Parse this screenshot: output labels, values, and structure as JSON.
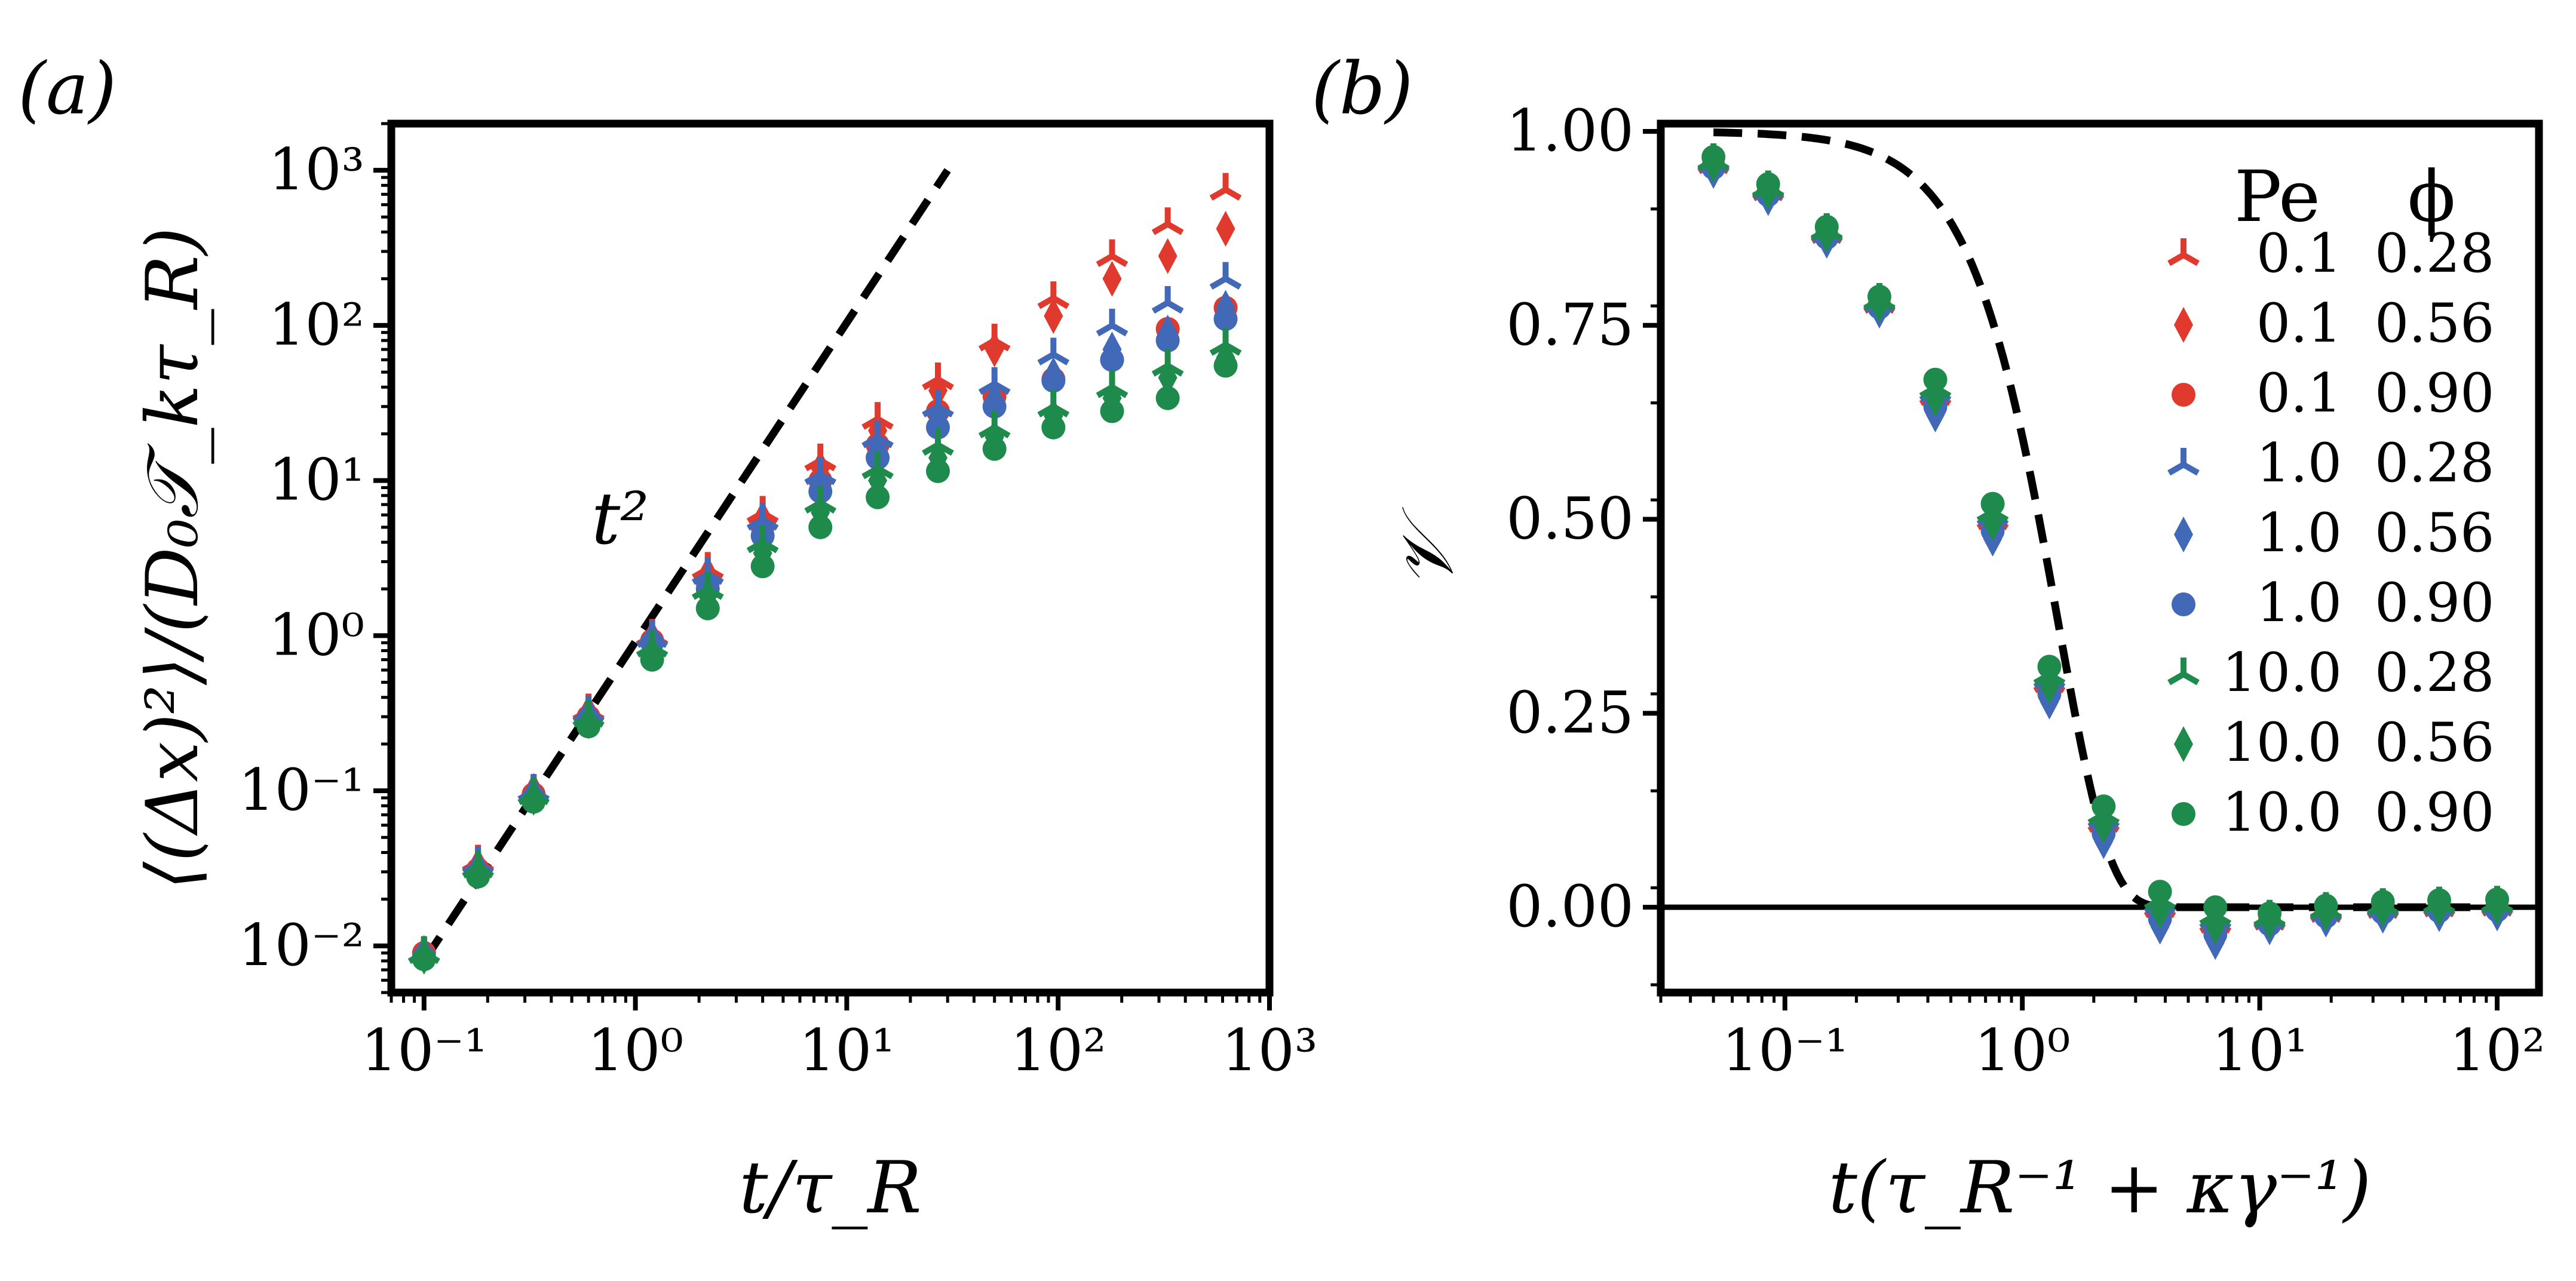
{
  "colors": {
    "red": "#E03A2E",
    "blue": "#4169B8",
    "green": "#1E8A4C",
    "axis": "#000000"
  },
  "chart_data": [
    {
      "panel_label": "(a)",
      "type": "scatter",
      "xscale": "log",
      "yscale": "log",
      "xlim": [
        0.07,
        1000
      ],
      "ylim": [
        0.005,
        2000
      ],
      "xticks": [
        {
          "v": 0.1,
          "label": "10⁻¹"
        },
        {
          "v": 1,
          "label": "10⁰"
        },
        {
          "v": 10,
          "label": "10¹"
        },
        {
          "v": 100,
          "label": "10²"
        },
        {
          "v": 1000,
          "label": "10³"
        }
      ],
      "yticks": [
        {
          "v": 0.01,
          "label": "10⁻²"
        },
        {
          "v": 0.1,
          "label": "10⁻¹"
        },
        {
          "v": 1,
          "label": "10⁰"
        },
        {
          "v": 10,
          "label": "10¹"
        },
        {
          "v": 100,
          "label": "10²"
        },
        {
          "v": 1000,
          "label": "10³"
        }
      ],
      "xlabel": "t/τ_R",
      "ylabel": "⟨(Δx)²⟩/(D₀𝒯_kτ_R)",
      "annotation": {
        "text": "t²",
        "x": 0.8,
        "y": 5
      },
      "reference_line": {
        "label": "t²",
        "x": [
          0.1,
          30
        ],
        "y": [
          0.008,
          1000
        ]
      },
      "x": [
        0.1,
        0.18,
        0.33,
        0.6,
        1.2,
        2.2,
        4,
        7.5,
        14,
        27,
        50,
        95,
        180,
        330,
        620
      ],
      "series": [
        {
          "name": "Pe 0.1, φ 0.28",
          "color": "red",
          "marker": "tri_down",
          "y": [
            0.009,
            0.035,
            0.1,
            0.33,
            1.0,
            2.7,
            6.2,
            13.5,
            25,
            45,
            80,
            150,
            280,
            450,
            750
          ]
        },
        {
          "name": "Pe 0.1, φ 0.56",
          "color": "red",
          "marker": "diamond",
          "y": [
            0.009,
            0.033,
            0.1,
            0.32,
            0.97,
            2.5,
            5.7,
            12,
            21,
            38,
            70,
            115,
            200,
            280,
            420
          ]
        },
        {
          "name": "Pe 0.1, φ 0.90",
          "color": "red",
          "marker": "circle",
          "y": [
            0.009,
            0.031,
            0.095,
            0.3,
            0.93,
            2.2,
            5.0,
            10.0,
            17,
            28,
            35,
            45,
            60,
            95,
            130
          ]
        },
        {
          "name": "Pe 1.0, φ 0.28",
          "color": "blue",
          "marker": "tri_down",
          "y": [
            0.009,
            0.034,
            0.1,
            0.32,
            0.98,
            2.5,
            5.6,
            11,
            19,
            30,
            42,
            65,
            100,
            140,
            200
          ]
        },
        {
          "name": "Pe 1.0, φ 0.56",
          "color": "blue",
          "marker": "diamond",
          "y": [
            0.009,
            0.032,
            0.097,
            0.31,
            0.95,
            2.2,
            4.9,
            9.5,
            16,
            26,
            33,
            48,
            70,
            90,
            130
          ]
        },
        {
          "name": "Pe 1.0, φ 0.90",
          "color": "blue",
          "marker": "circle",
          "y": [
            0.0085,
            0.029,
            0.09,
            0.29,
            0.9,
            2.0,
            4.4,
            8.5,
            14,
            22,
            30,
            44,
            60,
            80,
            110
          ]
        },
        {
          "name": "Pe 10.0, φ 0.28",
          "color": "green",
          "marker": "tri_down",
          "y": [
            0.009,
            0.032,
            0.095,
            0.3,
            0.85,
            2.0,
            4.0,
            7.2,
            12,
            17,
            22,
            30,
            40,
            55,
            75
          ]
        },
        {
          "name": "Pe 10.0, φ 0.56",
          "color": "green",
          "marker": "diamond",
          "y": [
            0.0085,
            0.03,
            0.09,
            0.28,
            0.78,
            1.8,
            3.4,
            6.2,
            10,
            14,
            19,
            26,
            34,
            46,
            62
          ]
        },
        {
          "name": "Pe 10.0, φ 0.90",
          "color": "green",
          "marker": "circle",
          "y": [
            0.0082,
            0.028,
            0.085,
            0.26,
            0.7,
            1.5,
            2.8,
            5.0,
            7.8,
            11.5,
            16,
            22,
            28,
            34,
            55
          ]
        }
      ]
    },
    {
      "panel_label": "(b)",
      "type": "scatter",
      "xscale": "log",
      "yscale": "linear",
      "xlim": [
        0.03,
        150
      ],
      "ylim": [
        -0.11,
        1.01
      ],
      "xticks": [
        {
          "v": 0.1,
          "label": "10⁻¹"
        },
        {
          "v": 1,
          "label": "10⁰"
        },
        {
          "v": 10,
          "label": "10¹"
        },
        {
          "v": 100,
          "label": "10²"
        }
      ],
      "yticks": [
        {
          "v": 0,
          "label": "0.00"
        },
        {
          "v": 0.25,
          "label": "0.25"
        },
        {
          "v": 0.5,
          "label": "0.50"
        },
        {
          "v": 0.75,
          "label": "0.75"
        },
        {
          "v": 1.0,
          "label": "1.00"
        }
      ],
      "xlabel": "t(τ_R⁻¹ + κγ⁻¹)",
      "ylabel": "𝒱",
      "zero_line": true,
      "reference_curve": "exp(-x²/2)",
      "x": [
        0.05,
        0.085,
        0.15,
        0.25,
        0.43,
        0.75,
        1.3,
        2.2,
        3.8,
        6.5,
        11,
        19,
        33,
        57,
        100
      ],
      "y_typical": [
        0.955,
        0.92,
        0.865,
        0.775,
        0.65,
        0.49,
        0.28,
        0.1,
        -0.01,
        -0.03,
        -0.02,
        -0.01,
        -0.005,
        -0.003,
        -0.002
      ],
      "legend": {
        "header": [
          "Pe",
          "ϕ"
        ],
        "entries": [
          {
            "pe": "0.1",
            "phi": "0.28",
            "color": "red",
            "marker": "tri_down"
          },
          {
            "pe": "0.1",
            "phi": "0.56",
            "color": "red",
            "marker": "diamond"
          },
          {
            "pe": "0.1",
            "phi": "0.90",
            "color": "red",
            "marker": "circle"
          },
          {
            "pe": "1.0",
            "phi": "0.28",
            "color": "blue",
            "marker": "tri_down"
          },
          {
            "pe": "1.0",
            "phi": "0.56",
            "color": "blue",
            "marker": "diamond"
          },
          {
            "pe": "1.0",
            "phi": "0.90",
            "color": "blue",
            "marker": "circle"
          },
          {
            "pe": "10.0",
            "phi": "0.28",
            "color": "green",
            "marker": "tri_down"
          },
          {
            "pe": "10.0",
            "phi": "0.56",
            "color": "green",
            "marker": "diamond"
          },
          {
            "pe": "10.0",
            "phi": "0.90",
            "color": "green",
            "marker": "circle"
          }
        ]
      }
    }
  ]
}
